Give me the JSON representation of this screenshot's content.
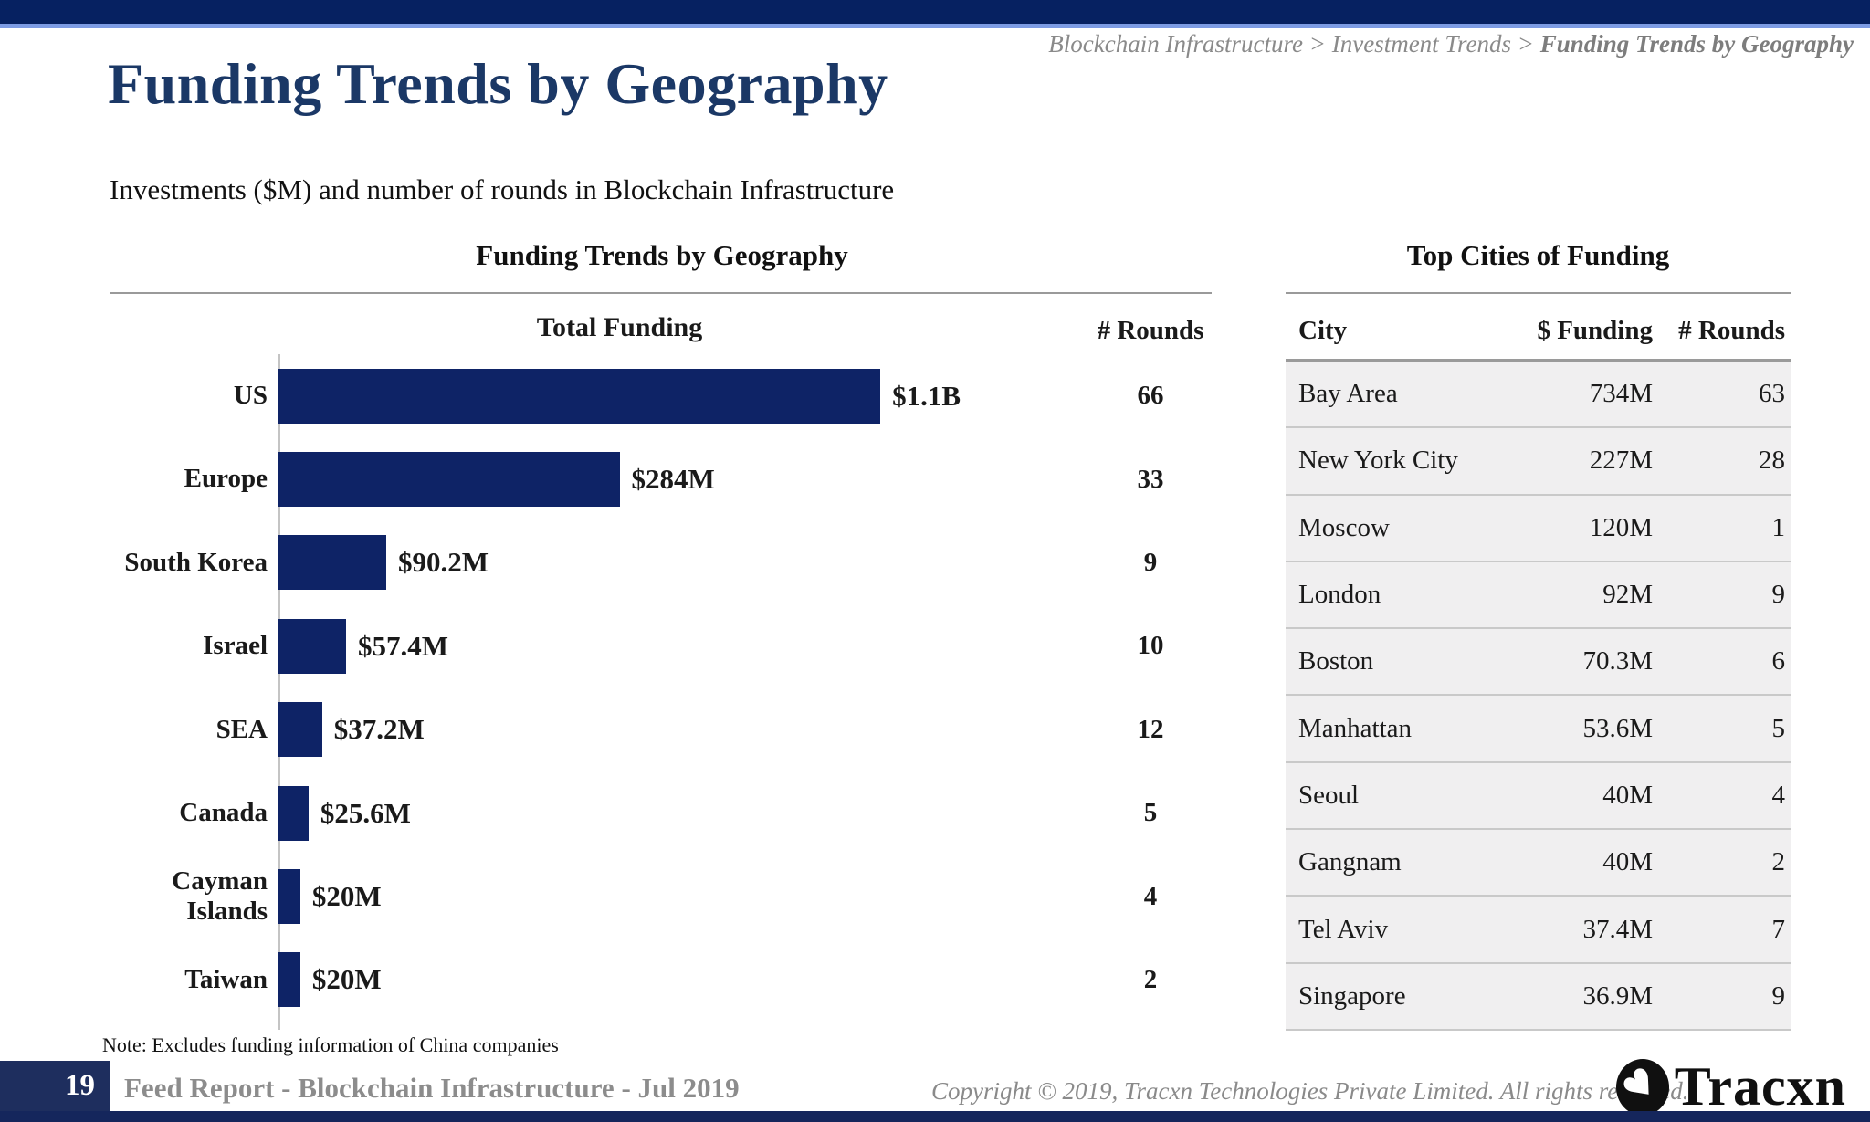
{
  "breadcrumb": {
    "items": [
      "Blockchain Infrastructure",
      "Investment Trends",
      "Funding Trends by Geography"
    ],
    "separator": " > "
  },
  "header": {
    "title": "Funding Trends by Geography",
    "subtitle": "Investments ($M) and number of rounds in Blockchain Infrastructure"
  },
  "chart_data": {
    "type": "bar",
    "orientation": "horizontal",
    "title": "Funding Trends by Geography",
    "column_headers": {
      "funding": "Total Funding",
      "rounds": "# Rounds"
    },
    "categories": [
      "US",
      "Europe",
      "South Korea",
      "Israel",
      "SEA",
      "Canada",
      "Cayman Islands",
      "Taiwan"
    ],
    "series": [
      {
        "name": "Total Funding ($M)",
        "values": [
          1100,
          284,
          90.2,
          57.4,
          37.2,
          25.6,
          20,
          20
        ]
      },
      {
        "name": "# Rounds",
        "values": [
          66,
          33,
          9,
          10,
          12,
          5,
          4,
          2
        ]
      }
    ],
    "value_labels": [
      "$1.1B",
      "$284M",
      "$90.2M",
      "$57.4M",
      "$37.2M",
      "$25.6M",
      "$20M",
      "$20M"
    ],
    "bar_pct": [
      100,
      50,
      15.8,
      9.9,
      6.4,
      4.4,
      3.2,
      3.2
    ],
    "bar_color": "#0e2366",
    "note": "Note: Excludes funding information of China companies",
    "grid": false,
    "legend": false
  },
  "table": {
    "title": "Top Cities of Funding",
    "headers": [
      "City",
      "$ Funding",
      "# Rounds"
    ],
    "rows": [
      [
        "Bay Area",
        "734M",
        "63"
      ],
      [
        "New York City",
        "227M",
        "28"
      ],
      [
        "Moscow",
        "120M",
        "1"
      ],
      [
        "London",
        "92M",
        "9"
      ],
      [
        "Boston",
        "70.3M",
        "6"
      ],
      [
        "Manhattan",
        "53.6M",
        "5"
      ],
      [
        "Seoul",
        "40M",
        "4"
      ],
      [
        "Gangnam",
        "40M",
        "2"
      ],
      [
        "Tel Aviv",
        "37.4M",
        "7"
      ],
      [
        "Singapore",
        "36.9M",
        "9"
      ]
    ]
  },
  "footer": {
    "page_number": "19",
    "report_title": "Feed Report - Blockchain Infrastructure - Jul 2019",
    "copyright": "Copyright © 2019, Tracxn Technologies Private Limited. All rights reserved.",
    "logo_text": "Tracxn"
  },
  "colors": {
    "top_bar": "#062161",
    "accent_line": "#7d9ce4",
    "title_navy": "#1b3866",
    "bar_navy": "#0e2366",
    "footer_navy": "#1e2e5e",
    "gray_text": "#8a8a8a",
    "table_row_bg": "#f0eff0"
  }
}
